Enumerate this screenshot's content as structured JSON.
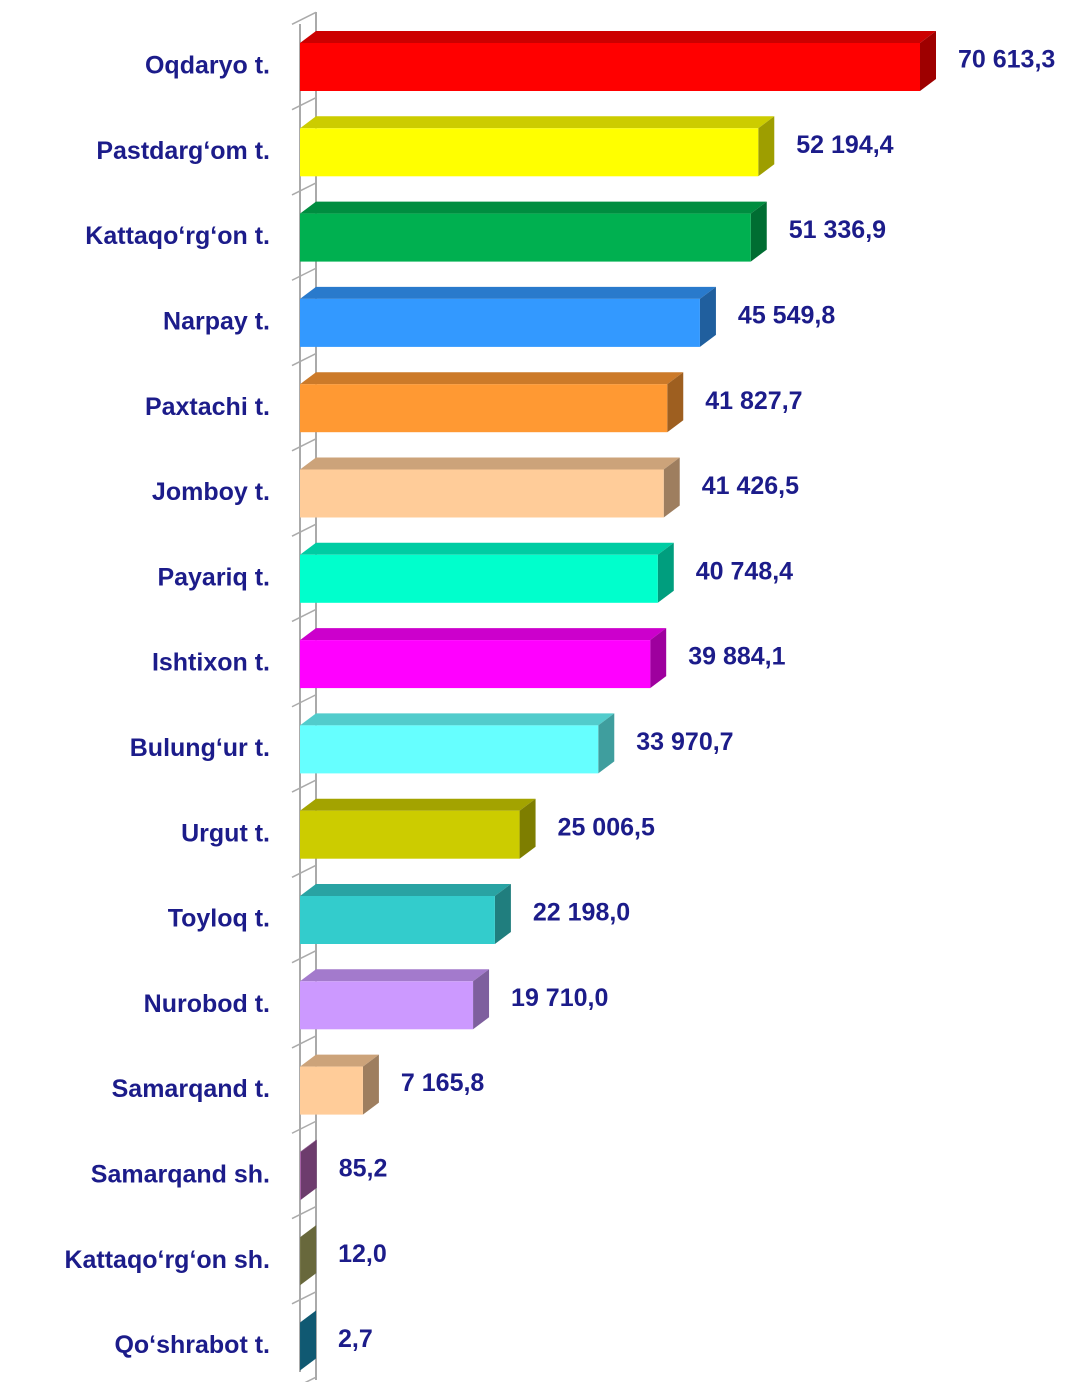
{
  "chart_data": {
    "type": "bar3d_horizontal",
    "categories": [
      "Oqdaryo t.",
      "Pastdarg‘om t.",
      "Kattaqo‘rg‘on t.",
      "Narpay t.",
      "Paxtachi t.",
      "Jomboy t.",
      "Payariq t.",
      "Ishtixon t.",
      "Bulung‘ur t.",
      "Urgut t.",
      "Toyloq t.",
      "Nurobod t.",
      "Samarqand t.",
      "Samarqand sh.",
      "Kattaqo‘rg‘on sh.",
      "Qo‘shrabot t."
    ],
    "values": [
      70613.3,
      52194.4,
      51336.9,
      45549.8,
      41827.7,
      41426.5,
      40748.4,
      39884.1,
      33970.7,
      25006.5,
      22198.0,
      19710.0,
      7165.8,
      85.2,
      12.0,
      2.7
    ],
    "value_labels": [
      "70 613,3",
      "52 194,4",
      "51 336,9",
      "45 549,8",
      "41 827,7",
      "41 426,5",
      "40 748,4",
      "39 884,1",
      "33 970,7",
      "25 006,5",
      "22 198,0",
      "19 710,0",
      "7 165,8",
      "85,2",
      "12,0",
      "2,7"
    ],
    "colors": [
      "#ff0000",
      "#ffff00",
      "#00b050",
      "#3399ff",
      "#ff9933",
      "#ffcc99",
      "#00ffcc",
      "#ff00ff",
      "#66ffff",
      "#cccc00",
      "#33cccc",
      "#cc99ff",
      "#ffcc99",
      "#b060b0",
      "#a8a860",
      "#1a8fb8"
    ]
  }
}
